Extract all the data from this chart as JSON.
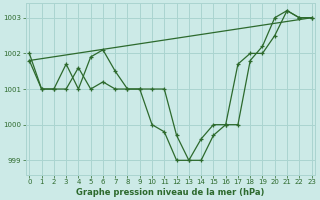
{
  "title": "Graphe pression niveau de la mer (hPa)",
  "bg_color": "#cceae7",
  "grid_color": "#aad4d0",
  "line_color": "#2d6a2d",
  "xlim": [
    -0.3,
    23.3
  ],
  "ylim": [
    998.6,
    1003.4
  ],
  "yticks": [
    999,
    1000,
    1001,
    1002,
    1003
  ],
  "xticks": [
    0,
    1,
    2,
    3,
    4,
    5,
    6,
    7,
    8,
    9,
    10,
    11,
    12,
    13,
    14,
    15,
    16,
    17,
    18,
    19,
    20,
    21,
    22,
    23
  ],
  "series1_x": [
    0,
    1,
    2,
    3,
    4,
    5,
    6,
    7,
    8,
    9,
    10,
    11,
    12,
    13,
    14,
    15,
    16,
    17,
    18,
    19,
    20,
    21,
    22,
    23
  ],
  "series1_y": [
    1001.8,
    1001.0,
    1001.0,
    1001.0,
    1001.6,
    1001.0,
    1001.2,
    1001.0,
    1001.0,
    1001.0,
    1001.0,
    1001.0,
    999.7,
    999.0,
    999.0,
    999.7,
    1000.0,
    1000.0,
    1001.8,
    1002.2,
    1003.0,
    1003.2,
    1003.0,
    1003.0
  ],
  "series2_x": [
    0,
    23
  ],
  "series2_y": [
    1001.8,
    1003.0
  ],
  "series3_x": [
    0,
    1,
    2,
    3,
    4,
    5,
    6,
    7,
    8,
    9,
    10,
    11,
    12,
    13,
    14,
    15,
    16,
    17,
    18,
    19,
    20,
    21,
    22,
    23
  ],
  "series3_y": [
    1002.0,
    1001.0,
    1001.0,
    1001.7,
    1001.0,
    1001.9,
    1002.1,
    1001.5,
    1001.0,
    1001.0,
    1000.0,
    999.8,
    999.0,
    999.0,
    999.6,
    1000.0,
    1000.0,
    1001.7,
    1002.0,
    1002.0,
    1002.5,
    1003.2,
    1003.0,
    1003.0
  ],
  "title_fontsize": 6,
  "tick_fontsize": 5
}
